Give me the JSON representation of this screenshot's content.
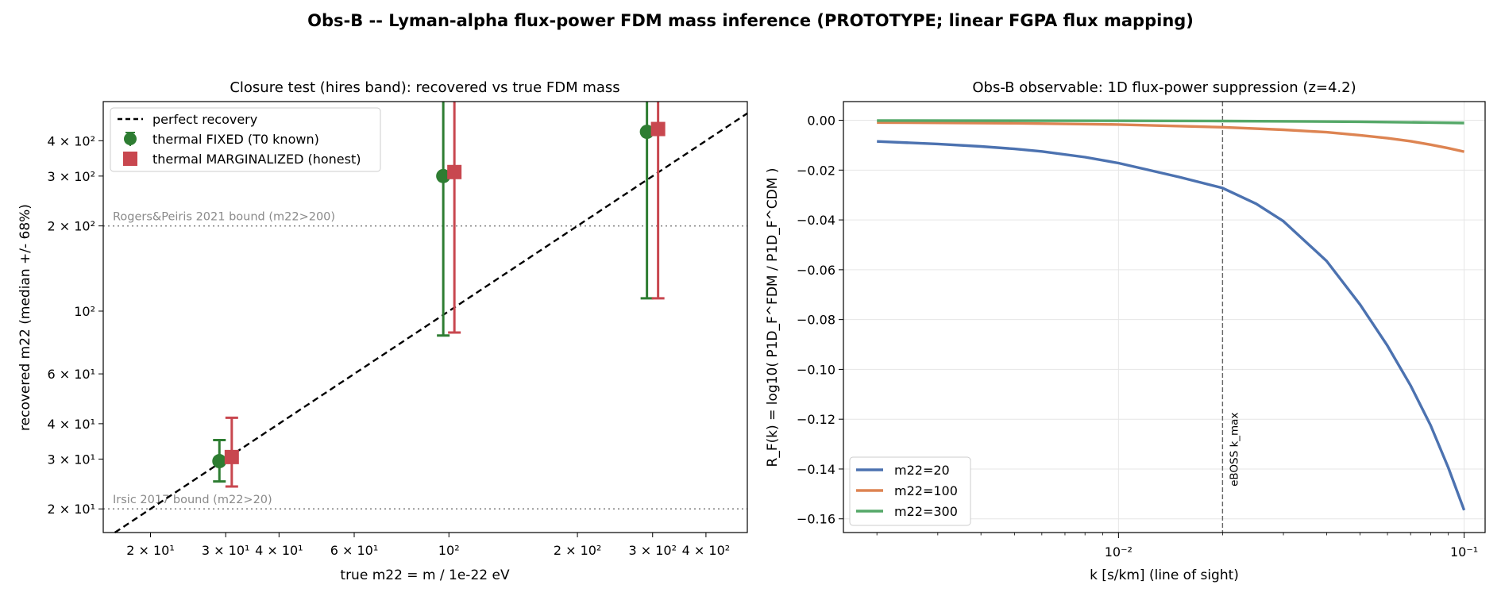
{
  "suptitle": "Obs-B -- Lyman-alpha flux-power FDM mass inference (PROTOTYPE; linear FGPA flux mapping)",
  "colors": {
    "fixed": "#2e7d32",
    "marginalized": "#c8474f",
    "m22_20": "#4c72b0",
    "m22_100": "#dd8452",
    "m22_300": "#55a868",
    "bound_line": "#888888",
    "grid": "#e6e6e6"
  },
  "chart_data": [
    {
      "type": "scatter",
      "title": "Closure test (hires band): recovered vs true FDM mass",
      "xlabel": "true  m22 = m / 1e-22 eV",
      "ylabel": "recovered m22 (median +/- 68%)",
      "xscale": "log",
      "yscale": "log",
      "xlim": [
        15.5,
        500
      ],
      "ylim": [
        16.5,
        550
      ],
      "x_ticks": [
        {
          "value": 20,
          "label": "2 × 10¹"
        },
        {
          "value": 30,
          "label": "3 × 10¹"
        },
        {
          "value": 40,
          "label": "4 × 10¹"
        },
        {
          "value": 60,
          "label": "6 × 10¹"
        },
        {
          "value": 100,
          "label": "10²"
        },
        {
          "value": 200,
          "label": "2 × 10²"
        },
        {
          "value": 300,
          "label": "3 × 10²"
        },
        {
          "value": 400,
          "label": "4 × 10²"
        }
      ],
      "y_ticks": [
        {
          "value": 20,
          "label": "2 × 10¹"
        },
        {
          "value": 30,
          "label": "3 × 10¹"
        },
        {
          "value": 40,
          "label": "4 × 10¹"
        },
        {
          "value": 60,
          "label": "6 × 10¹"
        },
        {
          "value": 100,
          "label": "10²"
        },
        {
          "value": 200,
          "label": "2 × 10²"
        },
        {
          "value": 300,
          "label": "3 × 10²"
        },
        {
          "value": 400,
          "label": "4 × 10²"
        }
      ],
      "reference_lines": [
        {
          "y": 200,
          "label": "Rogers&Peiris 2021 bound (m22>200)"
        },
        {
          "y": 20,
          "label": "Irsic 2017 bound (m22>20)"
        }
      ],
      "diagonal_label": "perfect recovery",
      "series": [
        {
          "name": "thermal FIXED (T0 known)",
          "marker": "circle",
          "points": [
            {
              "x": 29,
              "y": 29.5,
              "lo": 25,
              "hi": 35
            },
            {
              "x": 97,
              "y": 300,
              "lo": 82,
              "hi": 600
            },
            {
              "x": 291,
              "y": 430,
              "lo": 111,
              "hi": 600
            }
          ]
        },
        {
          "name": "thermal MARGINALIZED (honest)",
          "marker": "square",
          "points": [
            {
              "x": 31,
              "y": 30.5,
              "lo": 24,
              "hi": 42
            },
            {
              "x": 103,
              "y": 310,
              "lo": 84,
              "hi": 600
            },
            {
              "x": 309,
              "y": 440,
              "lo": 111,
              "hi": 600
            }
          ]
        }
      ],
      "legend": "upper left"
    },
    {
      "type": "line",
      "title": "Obs-B observable: 1D flux-power suppression (z=4.2)",
      "xlabel": "k  [s/km]  (line of sight)",
      "ylabel": "R_F(k) = log10( P1D_F^FDM / P1D_F^CDM )",
      "xscale": "log",
      "xlim": [
        0.0016,
        0.115
      ],
      "ylim": [
        -0.1655,
        0.0075
      ],
      "x_ticks": [
        {
          "value": 0.01,
          "label": "10⁻²"
        },
        {
          "value": 0.1,
          "label": "10⁻¹"
        }
      ],
      "y_ticks": [
        {
          "value": 0.0,
          "label": "0.00"
        },
        {
          "value": -0.02,
          "label": "−0.02"
        },
        {
          "value": -0.04,
          "label": "−0.04"
        },
        {
          "value": -0.06,
          "label": "−0.06"
        },
        {
          "value": -0.08,
          "label": "−0.08"
        },
        {
          "value": -0.1,
          "label": "−0.10"
        },
        {
          "value": -0.12,
          "label": "−0.12"
        },
        {
          "value": -0.14,
          "label": "−0.14"
        },
        {
          "value": -0.16,
          "label": "−0.16"
        }
      ],
      "vline": {
        "x": 0.02,
        "label": "eBOSS k_max"
      },
      "series": [
        {
          "name": "m22=20",
          "x": [
            0.002,
            0.003,
            0.004,
            0.005,
            0.006,
            0.008,
            0.01,
            0.012,
            0.015,
            0.02,
            0.025,
            0.03,
            0.04,
            0.05,
            0.06,
            0.07,
            0.08,
            0.09,
            0.1
          ],
          "y": [
            -0.0085,
            -0.0095,
            -0.0105,
            -0.0115,
            -0.0125,
            -0.0148,
            -0.0172,
            -0.0197,
            -0.0228,
            -0.0272,
            -0.0335,
            -0.0405,
            -0.0565,
            -0.074,
            -0.0905,
            -0.1065,
            -0.1225,
            -0.1395,
            -0.1565
          ]
        },
        {
          "name": "m22=100",
          "x": [
            0.002,
            0.005,
            0.01,
            0.02,
            0.03,
            0.04,
            0.05,
            0.06,
            0.07,
            0.08,
            0.09,
            0.1
          ],
          "y": [
            -0.0009,
            -0.0012,
            -0.0017,
            -0.0028,
            -0.0038,
            -0.0048,
            -0.006,
            -0.0072,
            -0.0084,
            -0.0098,
            -0.0112,
            -0.0126
          ]
        },
        {
          "name": "m22=300",
          "x": [
            0.002,
            0.01,
            0.02,
            0.05,
            0.08,
            0.1
          ],
          "y": [
            -0.0001,
            -0.0002,
            -0.0003,
            -0.0006,
            -0.0009,
            -0.0011
          ]
        }
      ],
      "legend": "lower left"
    }
  ]
}
